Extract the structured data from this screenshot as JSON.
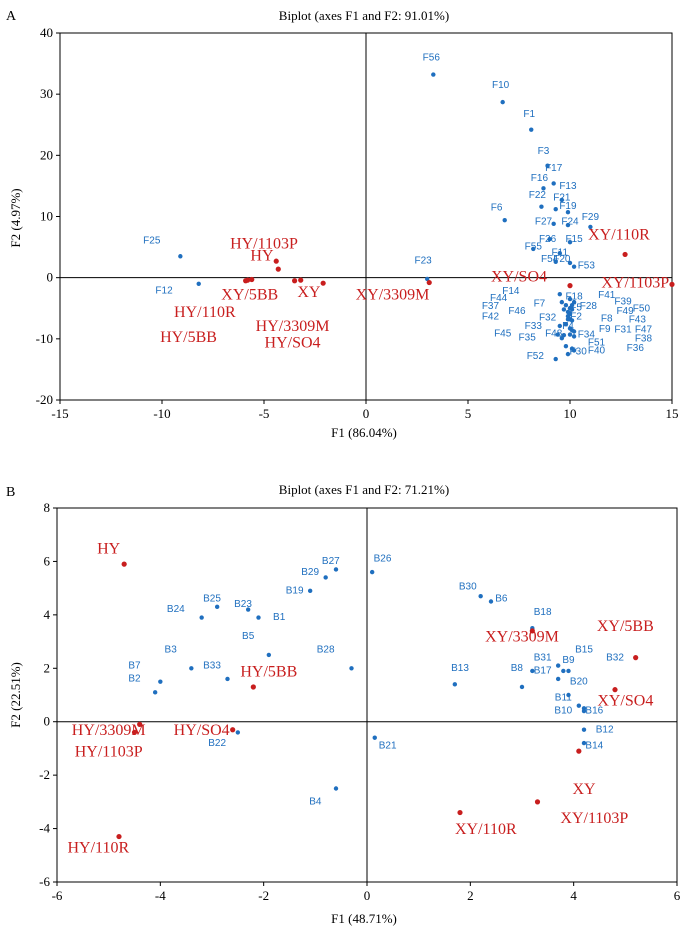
{
  "colors": {
    "feature": "#1f6fbf",
    "sample": "#c81e1e",
    "frame": "#000000"
  },
  "chart_data": [
    {
      "type": "scatter",
      "panel": "A",
      "title": "Biplot (axes F1 and F2: 91.01%)",
      "xlabel": "F1 (86.04%)",
      "ylabel": "F2 (4.97%)",
      "xlim": [
        -15,
        15
      ],
      "ylim": [
        -20,
        40
      ],
      "xticks": [
        "-15",
        "-10",
        "-5",
        "0",
        "5",
        "10",
        "15"
      ],
      "yticks": [
        "40",
        "30",
        "20",
        "10",
        "0",
        "-10",
        "-20"
      ],
      "series": [
        {
          "kind": "variables",
          "points": [
            {
              "label": "F56",
              "x": 3.3,
              "y": 33.2,
              "lx": 3.2,
              "ly": 35.5
            },
            {
              "label": "F10",
              "x": 6.7,
              "y": 28.7,
              "lx": 6.6,
              "ly": 31.0
            },
            {
              "label": "F1",
              "x": 8.1,
              "y": 24.2,
              "lx": 8.0,
              "ly": 26.3
            },
            {
              "label": "F3",
              "x": 8.9,
              "y": 18.3,
              "lx": 8.7,
              "ly": 20.2
            },
            {
              "label": "F17",
              "x": 9.2,
              "y": 15.4,
              "lx": 9.2,
              "ly": 17.4
            },
            {
              "label": "F16",
              "x": 8.7,
              "y": 14.6,
              "lx": 8.5,
              "ly": 15.8
            },
            {
              "label": "F13",
              "x": 9.6,
              "y": 12.7,
              "lx": 9.9,
              "ly": 14.5
            },
            {
              "label": "F22",
              "x": 8.6,
              "y": 11.6,
              "lx": 8.4,
              "ly": 13.0
            },
            {
              "label": "F21",
              "x": 9.3,
              "y": 11.2,
              "lx": 9.6,
              "ly": 12.6
            },
            {
              "label": "F19",
              "x": 9.9,
              "y": 10.7,
              "lx": 9.9,
              "ly": 11.2
            },
            {
              "label": "F6",
              "x": 6.8,
              "y": 9.4,
              "lx": 6.4,
              "ly": 11.0
            },
            {
              "label": "F29",
              "x": 11.0,
              "y": 8.3,
              "lx": 11.0,
              "ly": 9.4
            },
            {
              "label": "F27",
              "x": 9.2,
              "y": 8.8,
              "lx": 8.7,
              "ly": 8.7
            },
            {
              "label": "F24",
              "x": 9.9,
              "y": 8.6,
              "lx": 10.0,
              "ly": 8.7
            },
            {
              "label": "F26",
              "x": 9.0,
              "y": 6.3,
              "lx": 8.9,
              "ly": 5.8
            },
            {
              "label": "F15",
              "x": 10.0,
              "y": 5.8,
              "lx": 10.2,
              "ly": 5.8
            },
            {
              "label": "F55",
              "x": 8.2,
              "y": 4.7,
              "lx": 8.2,
              "ly": 4.6
            },
            {
              "label": "F11",
              "x": 9.5,
              "y": 4.0,
              "lx": 9.5,
              "ly": 3.6
            },
            {
              "label": "F54",
              "x": 9.3,
              "y": 2.6,
              "lx": 9.0,
              "ly": 2.6
            },
            {
              "label": "F20",
              "x": 10.0,
              "y": 2.4,
              "lx": 9.6,
              "ly": 2.6
            },
            {
              "label": "F53",
              "x": 10.2,
              "y": 1.8,
              "lx": 10.8,
              "ly": 1.5
            },
            {
              "label": "F23",
              "x": 3.0,
              "y": -0.2,
              "lx": 2.8,
              "ly": 2.3
            },
            {
              "label": "F25",
              "x": -9.1,
              "y": 3.5,
              "lx": -10.5,
              "ly": 5.6
            },
            {
              "label": "F12",
              "x": -8.2,
              "y": -1.0,
              "lx": -9.9,
              "ly": -2.6
            },
            {
              "label": "F14",
              "x": 9.5,
              "y": -2.7,
              "lx": 7.1,
              "ly": -2.7
            },
            {
              "label": "F18",
              "x": 10.0,
              "y": -3.5,
              "lx": 10.2,
              "ly": -3.6
            },
            {
              "label": "F44",
              "x": 9.6,
              "y": -4.0,
              "lx": 6.5,
              "ly": -3.8
            },
            {
              "label": "F41",
              "x": 10.2,
              "y": -4.0,
              "lx": 11.8,
              "ly": -3.3
            },
            {
              "label": "F7",
              "x": 9.8,
              "y": -4.5,
              "lx": 8.5,
              "ly": -4.7
            },
            {
              "label": "F5",
              "x": 10.0,
              "y": -5.0,
              "lx": 10.3,
              "ly": -5.4
            },
            {
              "label": "F28",
              "x": 10.0,
              "y": -5.0,
              "lx": 10.9,
              "ly": -5.1
            },
            {
              "label": "F39",
              "x": 10.1,
              "y": -4.5,
              "lx": 12.6,
              "ly": -4.4
            },
            {
              "label": "F37",
              "x": 9.7,
              "y": -5.2,
              "lx": 6.1,
              "ly": -5.1
            },
            {
              "label": "F46",
              "x": 9.9,
              "y": -5.6,
              "lx": 7.4,
              "ly": -5.9
            },
            {
              "label": "F50",
              "x": 10.1,
              "y": -5.2,
              "lx": 13.5,
              "ly": -5.5
            },
            {
              "label": "F49",
              "x": 10.0,
              "y": -5.8,
              "lx": 12.7,
              "ly": -5.9
            },
            {
              "label": "F2",
              "x": 10.0,
              "y": -6.0,
              "lx": 10.3,
              "ly": -6.8
            },
            {
              "label": "F42",
              "x": 9.9,
              "y": -6.3,
              "lx": 6.1,
              "ly": -6.8
            },
            {
              "label": "F32",
              "x": 9.9,
              "y": -6.8,
              "lx": 8.9,
              "ly": -7.0
            },
            {
              "label": "F8",
              "x": 10.0,
              "y": -6.8,
              "lx": 11.8,
              "ly": -7.2
            },
            {
              "label": "F43",
              "x": 10.1,
              "y": -7.0,
              "lx": 13.3,
              "ly": -7.3
            },
            {
              "label": "F4",
              "x": 9.8,
              "y": -7.6,
              "lx": 9.9,
              "ly": -8.4
            },
            {
              "label": "F33",
              "x": 9.5,
              "y": -7.9,
              "lx": 8.2,
              "ly": -8.4
            },
            {
              "label": "F9",
              "x": 10.0,
              "y": -8.3,
              "lx": 11.7,
              "ly": -8.9
            },
            {
              "label": "F31",
              "x": 10.1,
              "y": -8.6,
              "lx": 12.6,
              "ly": -9.0
            },
            {
              "label": "F47",
              "x": 10.2,
              "y": -8.8,
              "lx": 13.6,
              "ly": -9.0
            },
            {
              "label": "F45",
              "x": 9.4,
              "y": -9.3,
              "lx": 6.7,
              "ly": -9.6
            },
            {
              "label": "F48",
              "x": 9.7,
              "y": -9.4,
              "lx": 9.2,
              "ly": -9.6
            },
            {
              "label": "F34",
              "x": 10.0,
              "y": -9.3,
              "lx": 10.8,
              "ly": -9.8
            },
            {
              "label": "F38",
              "x": 10.2,
              "y": -9.6,
              "lx": 13.6,
              "ly": -10.4
            },
            {
              "label": "F35",
              "x": 9.6,
              "y": -9.9,
              "lx": 7.9,
              "ly": -10.3
            },
            {
              "label": "F51",
              "x": 9.8,
              "y": -11.2,
              "lx": 11.3,
              "ly": -11.1
            },
            {
              "label": "F36",
              "x": 10.1,
              "y": -11.6,
              "lx": 13.2,
              "ly": -12.0
            },
            {
              "label": "F40",
              "x": 10.2,
              "y": -11.9,
              "lx": 11.3,
              "ly": -12.4
            },
            {
              "label": "F30",
              "x": 9.9,
              "y": -12.5,
              "lx": 10.4,
              "ly": -12.6
            },
            {
              "label": "F52",
              "x": 9.3,
              "y": -13.3,
              "lx": 8.3,
              "ly": -13.3
            }
          ]
        },
        {
          "kind": "samples",
          "points": [
            {
              "label": "HY/1103P",
              "x": -4.3,
              "y": 1.4,
              "lx": -5.0,
              "ly": 4.8
            },
            {
              "label": "HY",
              "x": -4.4,
              "y": 2.7,
              "lx": -5.1,
              "ly": 2.8
            },
            {
              "label": "XY/110R",
              "x": 12.7,
              "y": 3.8,
              "lx": 12.4,
              "ly": 6.2
            },
            {
              "label": "XY/5BB",
              "x": -5.8,
              "y": -0.4,
              "lx": -5.7,
              "ly": -3.6
            },
            {
              "label": "XY",
              "x": -2.1,
              "y": -0.9,
              "lx": -2.8,
              "ly": -3.2
            },
            {
              "label": "HY/110R",
              "x": -5.9,
              "y": -0.5,
              "lx": -7.9,
              "ly": -6.4
            },
            {
              "label": "HY/5BB",
              "x": -5.6,
              "y": -0.3,
              "lx": -8.7,
              "ly": -10.5
            },
            {
              "label": "HY/3309M",
              "x": -3.5,
              "y": -0.5,
              "lx": -3.6,
              "ly": -8.7
            },
            {
              "label": "HY/SO4",
              "x": -3.2,
              "y": -0.4,
              "lx": -3.6,
              "ly": -11.4
            },
            {
              "label": "XY/3309M",
              "x": 3.1,
              "y": -0.8,
              "lx": 1.3,
              "ly": -3.6
            },
            {
              "label": "XY/SO4",
              "x": 10.0,
              "y": -1.3,
              "lx": 7.5,
              "ly": -0.6
            },
            {
              "label": "XY/1103P",
              "x": 15.0,
              "y": -1.1,
              "lx": 13.2,
              "ly": -1.6
            }
          ]
        }
      ]
    },
    {
      "type": "scatter",
      "panel": "B",
      "title": "Biplot (axes F1 and F2: 71.21%)",
      "xlabel": "F1 (48.71%)",
      "ylabel": "F2 (22.51%)",
      "xlim": [
        -6,
        6
      ],
      "ylim": [
        -6,
        8
      ],
      "xticks": [
        "-6",
        "-4",
        "-2",
        "0",
        "2",
        "4",
        "6"
      ],
      "yticks": [
        "8",
        "6",
        "4",
        "2",
        "0",
        "-2",
        "-4",
        "-6"
      ],
      "series": [
        {
          "kind": "variables",
          "points": [
            {
              "label": "B26",
              "x": 0.1,
              "y": 5.6,
              "lx": 0.3,
              "ly": 6.0
            },
            {
              "label": "B27",
              "x": -0.6,
              "y": 5.7,
              "lx": -0.7,
              "ly": 5.9
            },
            {
              "label": "B29",
              "x": -0.8,
              "y": 5.4,
              "lx": -1.1,
              "ly": 5.5
            },
            {
              "label": "B19",
              "x": -1.1,
              "y": 4.9,
              "lx": -1.4,
              "ly": 4.8
            },
            {
              "label": "B24",
              "x": -3.2,
              "y": 3.9,
              "lx": -3.7,
              "ly": 4.1
            },
            {
              "label": "B25",
              "x": -2.9,
              "y": 4.3,
              "lx": -3.0,
              "ly": 4.5
            },
            {
              "label": "B23",
              "x": -2.3,
              "y": 4.2,
              "lx": -2.4,
              "ly": 4.3
            },
            {
              "label": "B1",
              "x": -2.1,
              "y": 3.9,
              "lx": -1.7,
              "ly": 3.8
            },
            {
              "label": "B5",
              "x": -1.9,
              "y": 2.5,
              "lx": -2.3,
              "ly": 3.1
            },
            {
              "label": "B28",
              "x": -0.3,
              "y": 2.0,
              "lx": -0.8,
              "ly": 2.6
            },
            {
              "label": "B3",
              "x": -3.4,
              "y": 2.0,
              "lx": -3.8,
              "ly": 2.6
            },
            {
              "label": "B33",
              "x": -2.7,
              "y": 1.6,
              "lx": -3.0,
              "ly": 2.0
            },
            {
              "label": "B7",
              "x": -4.1,
              "y": 1.1,
              "lx": -4.5,
              "ly": 2.0
            },
            {
              "label": "B2",
              "x": -4.0,
              "y": 1.5,
              "lx": -4.5,
              "ly": 1.5
            },
            {
              "label": "B22",
              "x": -2.5,
              "y": -0.4,
              "lx": -2.9,
              "ly": -0.9
            },
            {
              "label": "B4",
              "x": -0.6,
              "y": -2.5,
              "lx": -1.0,
              "ly": -3.1
            },
            {
              "label": "B21",
              "x": 0.15,
              "y": -0.6,
              "lx": 0.4,
              "ly": -1.0
            },
            {
              "label": "B30",
              "x": 2.2,
              "y": 4.7,
              "lx": 1.95,
              "ly": 4.95
            },
            {
              "label": "B6",
              "x": 2.4,
              "y": 4.5,
              "lx": 2.6,
              "ly": 4.5
            },
            {
              "label": "B18",
              "x": 3.2,
              "y": 3.5,
              "lx": 3.4,
              "ly": 4.0
            },
            {
              "label": "B13",
              "x": 1.7,
              "y": 1.4,
              "lx": 1.8,
              "ly": 1.9
            },
            {
              "label": "B8",
              "x": 3.0,
              "y": 1.3,
              "lx": 2.9,
              "ly": 1.9
            },
            {
              "label": "B17",
              "x": 3.2,
              "y": 1.9,
              "lx": 3.4,
              "ly": 1.8
            },
            {
              "label": "B31",
              "x": 3.8,
              "y": 1.9,
              "lx": 3.4,
              "ly": 2.3
            },
            {
              "label": "B9",
              "x": 3.7,
              "y": 1.6,
              "lx": 3.9,
              "ly": 2.2
            },
            {
              "label": "B15",
              "x": 3.7,
              "y": 2.1,
              "lx": 4.2,
              "ly": 2.6
            },
            {
              "label": "B32",
              "x": 3.9,
              "y": 1.9,
              "lx": 4.8,
              "ly": 2.3
            },
            {
              "label": "B20",
              "x": 3.9,
              "y": 1.0,
              "lx": 4.1,
              "ly": 1.4
            },
            {
              "label": "B11",
              "x": 4.1,
              "y": 0.6,
              "lx": 3.8,
              "ly": 0.8
            },
            {
              "label": "B10",
              "x": 4.2,
              "y": 0.5,
              "lx": 3.8,
              "ly": 0.3
            },
            {
              "label": "B16",
              "x": 4.2,
              "y": 0.4,
              "lx": 4.4,
              "ly": 0.3
            },
            {
              "label": "B12",
              "x": 4.2,
              "y": -0.3,
              "lx": 4.6,
              "ly": -0.4
            },
            {
              "label": "B14",
              "x": 4.2,
              "y": -0.8,
              "lx": 4.4,
              "ly": -1.0
            }
          ]
        },
        {
          "kind": "samples",
          "points": [
            {
              "label": "HY",
              "x": -4.7,
              "y": 5.9,
              "lx": -5.0,
              "ly": 6.3
            },
            {
              "label": "HY/5BB",
              "x": -2.2,
              "y": 1.3,
              "lx": -1.9,
              "ly": 1.7
            },
            {
              "label": "HY/3309M",
              "x": -4.4,
              "y": -0.1,
              "lx": -5.0,
              "ly": -0.5
            },
            {
              "label": "HY/1103P",
              "x": -4.5,
              "y": -0.4,
              "lx": -5.0,
              "ly": -1.3
            },
            {
              "label": "HY/SO4",
              "x": -2.6,
              "y": -0.3,
              "lx": -3.2,
              "ly": -0.5
            },
            {
              "label": "HY/110R",
              "x": -4.8,
              "y": -4.3,
              "lx": -5.2,
              "ly": -4.9
            },
            {
              "label": "XY/3309M",
              "x": 3.2,
              "y": 3.4,
              "lx": 3.0,
              "ly": 3.0
            },
            {
              "label": "XY/5BB",
              "x": 5.2,
              "y": 2.4,
              "lx": 5.0,
              "ly": 3.4
            },
            {
              "label": "XY/SO4",
              "x": 4.8,
              "y": 1.2,
              "lx": 5.0,
              "ly": 0.6
            },
            {
              "label": "XY",
              "x": 4.1,
              "y": -1.1,
              "lx": 4.2,
              "ly": -2.7
            },
            {
              "label": "XY/1103P",
              "x": 3.3,
              "y": -3.0,
              "lx": 4.4,
              "ly": -3.8
            },
            {
              "label": "XY/110R",
              "x": 1.8,
              "y": -3.4,
              "lx": 2.3,
              "ly": -4.2
            }
          ]
        }
      ]
    }
  ]
}
